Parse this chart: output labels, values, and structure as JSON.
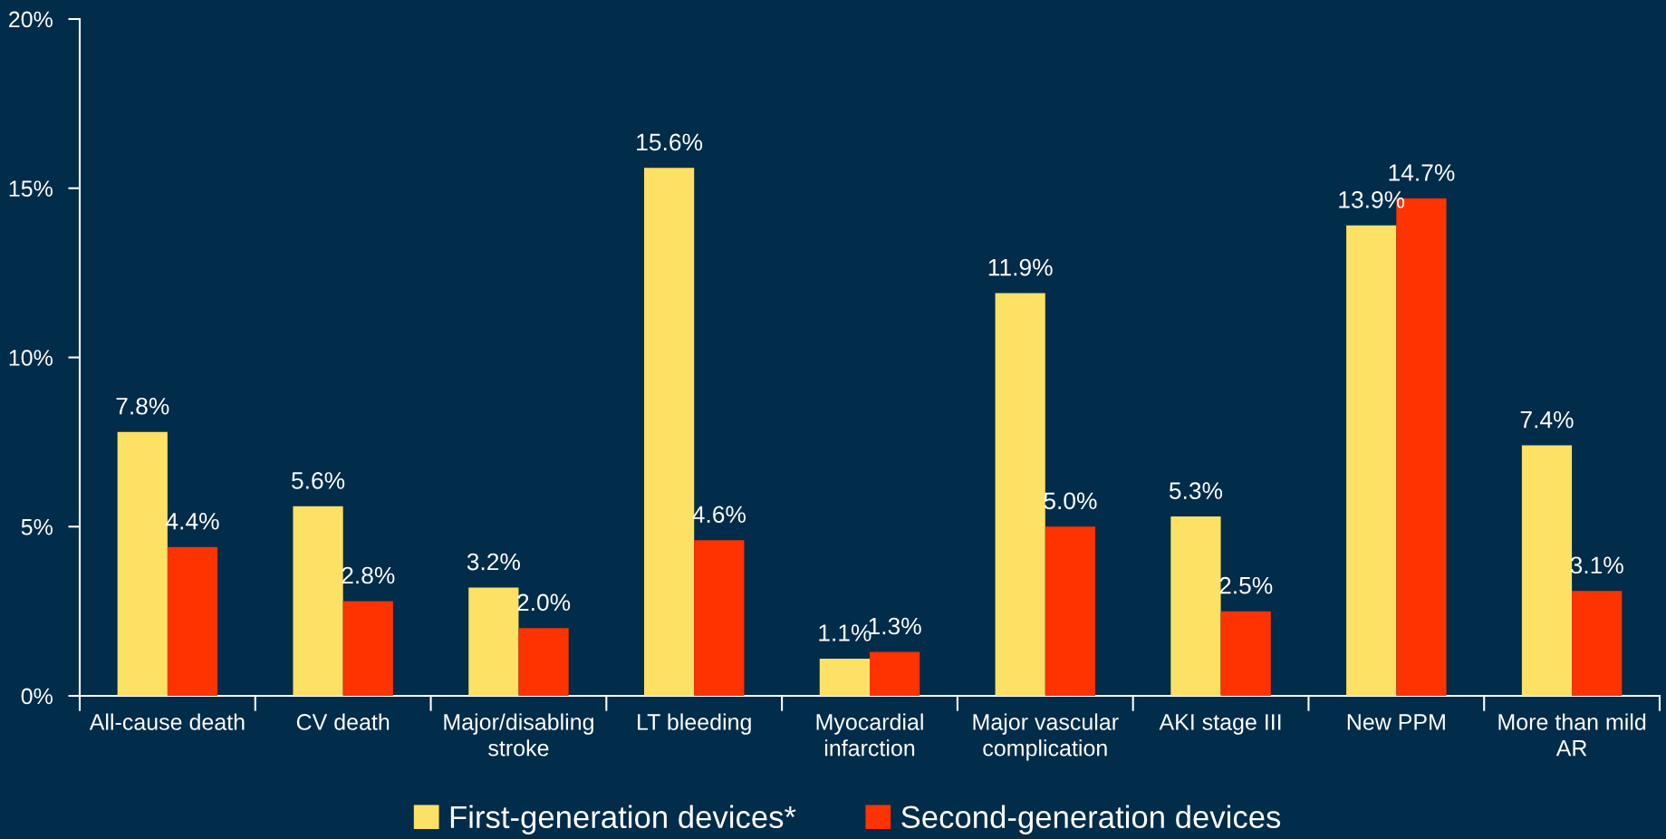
{
  "chart_data": {
    "type": "bar",
    "categories": [
      "All-cause death",
      "CV death",
      "Major/disabling stroke",
      "LT bleeding",
      "Myocardial infarction",
      "Major vascular complication",
      "AKI stage III",
      "New PPM",
      "More than mild AR"
    ],
    "series": [
      {
        "name": "First-generation devices*",
        "color": "#fde164",
        "values": [
          7.8,
          5.6,
          3.2,
          15.6,
          1.1,
          11.9,
          5.3,
          13.9,
          7.4
        ],
        "value_labels": [
          "7.8%",
          "5.6%",
          "3.2%",
          "15.6%",
          "1.1%",
          "11.9%",
          "5.3%",
          "13.9%",
          "7.4%"
        ]
      },
      {
        "name": "Second-generation devices",
        "color": "#ff3300",
        "values": [
          4.4,
          2.8,
          2.0,
          4.6,
          1.3,
          5.0,
          2.5,
          14.7,
          3.1
        ],
        "value_labels": [
          "4.4%",
          "2.8%",
          "2.0%",
          "4.6%",
          "1.3%",
          "5.0%",
          "2.5%",
          "14.7%",
          "3.1%"
        ]
      }
    ],
    "ylim": [
      0,
      20
    ],
    "yticks": [
      {
        "value": 0,
        "label": "0%"
      },
      {
        "value": 5,
        "label": "5%"
      },
      {
        "value": 10,
        "label": "10%"
      },
      {
        "value": 15,
        "label": "15%"
      },
      {
        "value": 20,
        "label": "20%"
      }
    ],
    "legend": "bottom"
  }
}
